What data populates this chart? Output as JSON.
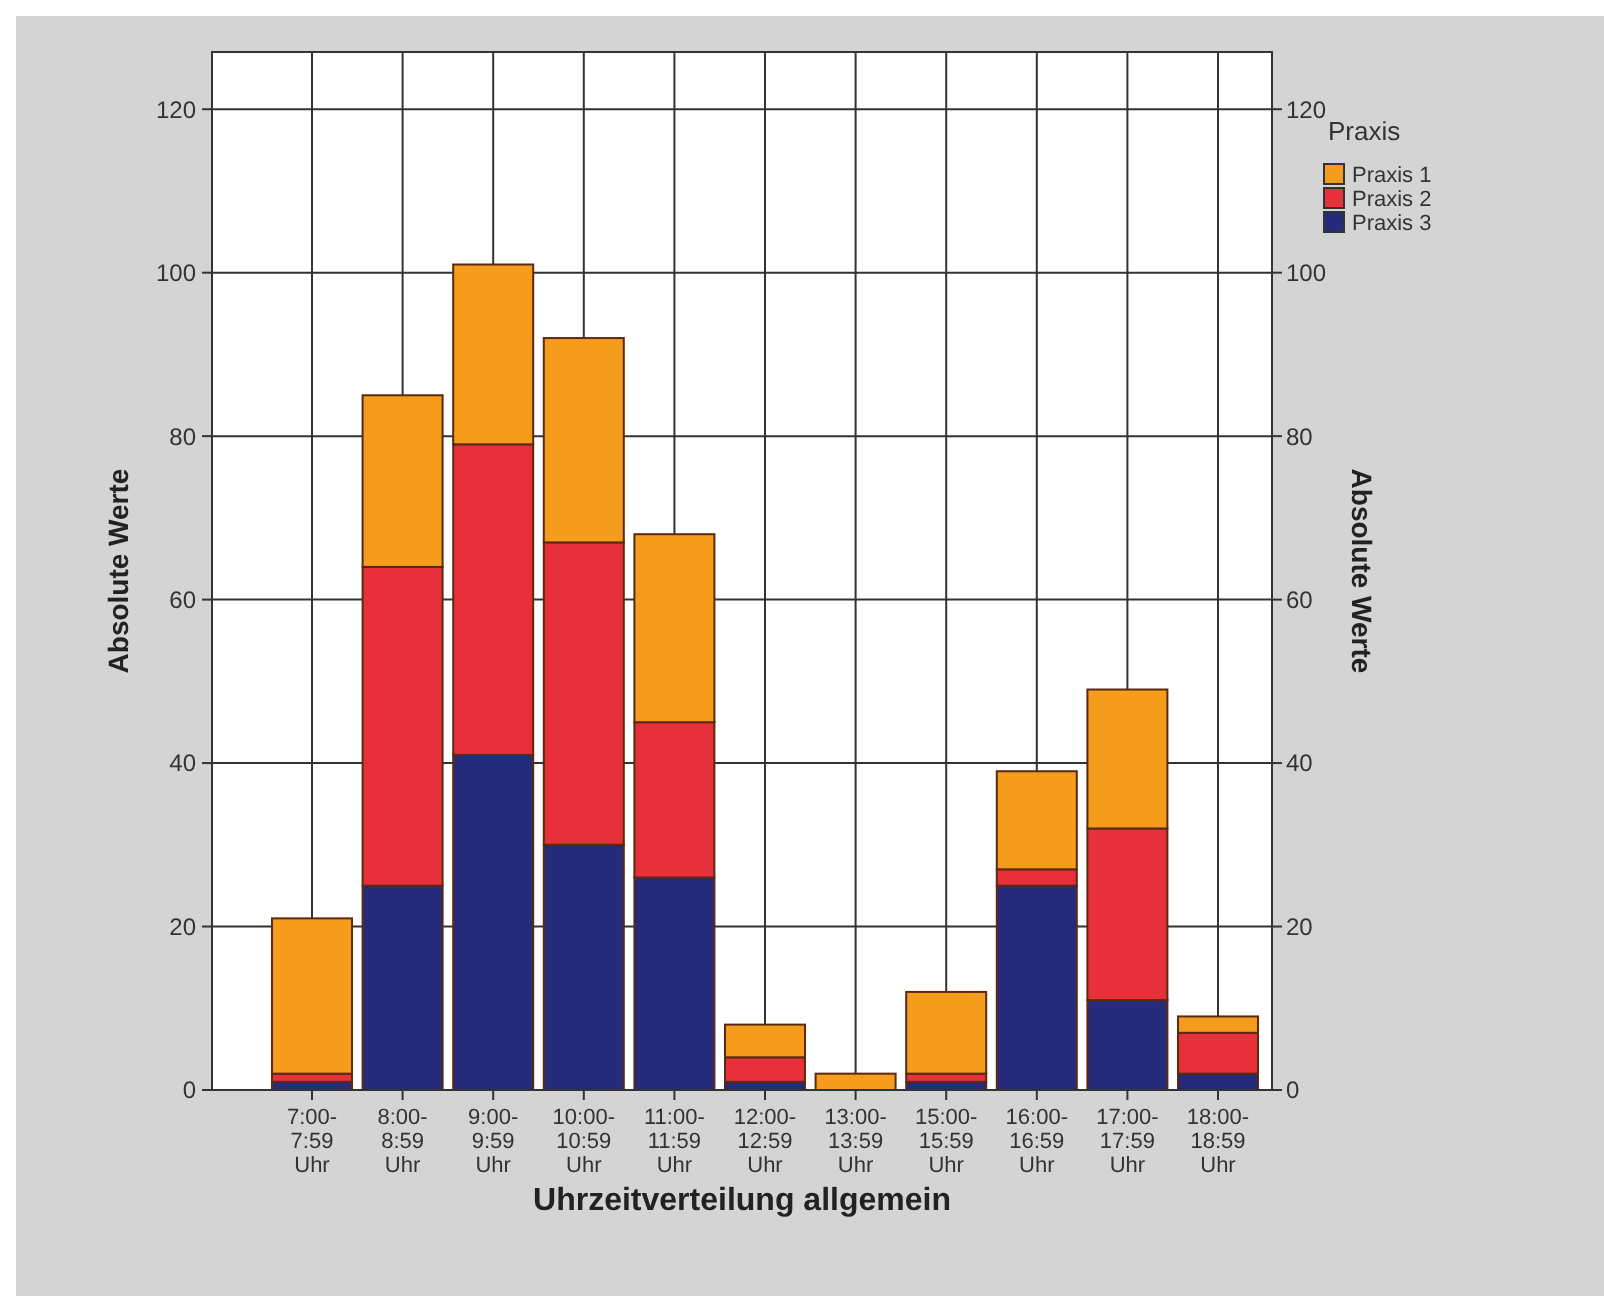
{
  "chart_data": {
    "type": "bar",
    "stacked": true,
    "xlabel": "Uhrzeitverteilung allgemein",
    "ylabel": "Absolute Werte",
    "y2label": "Absolute Werte",
    "legend_title": "Praxis",
    "legend": "top right",
    "grid": true,
    "categories": [
      "7:00-\n7:59\nUhr",
      "8:00-\n8:59\nUhr",
      "9:00-\n9:59\nUhr",
      "10:00-\n10:59\nUhr",
      "11:00-\n11:59\nUhr",
      "12:00-\n12:59\nUhr",
      "13:00-\n13:59\nUhr",
      "15:00-\n15:59\nUhr",
      "16:00-\n16:59\nUhr",
      "17:00-\n17:59\nUhr",
      "18:00-\n18:59\nUhr"
    ],
    "series": [
      {
        "name": "Praxis 3",
        "color": "#252b7a",
        "values": [
          1,
          25,
          41,
          30,
          26,
          1,
          0,
          1,
          25,
          11,
          2
        ]
      },
      {
        "name": "Praxis 2",
        "color": "#e8303a",
        "values": [
          1,
          39,
          38,
          37,
          19,
          3,
          0,
          1,
          2,
          21,
          5
        ]
      },
      {
        "name": "Praxis 1",
        "color": "#f59c1c",
        "values": [
          19,
          21,
          22,
          25,
          23,
          4,
          2,
          10,
          12,
          17,
          2
        ]
      }
    ],
    "ylim": [
      0,
      127
    ],
    "yticks": [
      0,
      20,
      40,
      60,
      80,
      100,
      120
    ],
    "y2lim": [
      0,
      127
    ],
    "y2ticks": [
      0,
      20,
      40,
      60,
      80,
      100,
      120
    ]
  }
}
